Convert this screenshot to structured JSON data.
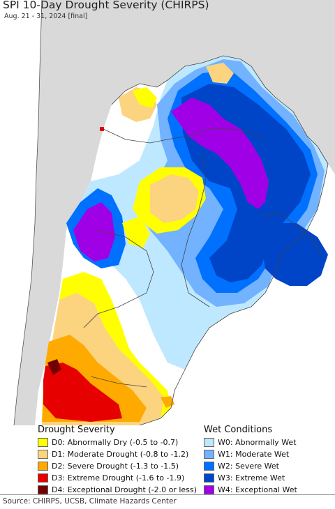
{
  "title": "SPI 10-Day Drought Severity (CHIRPS)",
  "subtitle": "Aug. 21 - 31, 2024 [final]",
  "legend": {
    "drought": {
      "heading": "Drought Severity",
      "items": [
        {
          "label": "D0: Abnormally Dry (-0.5 to -0.7)",
          "color": "#ffff00"
        },
        {
          "label": "D1: Moderate Drought (-0.8 to -1.2)",
          "color": "#fcd37f"
        },
        {
          "label": "D2: Severe Drought (-1.3 to -1.5)",
          "color": "#ffaa00"
        },
        {
          "label": "D3: Extreme Drought (-1.6 to -1.9)",
          "color": "#e60000"
        },
        {
          "label": "D4: Exceptional Drought (-2.0 or less)",
          "color": "#730000"
        }
      ]
    },
    "wet": {
      "heading": "Wet Conditions",
      "items": [
        {
          "label": "W0: Abnormally Wet",
          "color": "#bee8ff"
        },
        {
          "label": "W1: Moderate Wet",
          "color": "#73b2ff"
        },
        {
          "label": "W2: Severe Wet",
          "color": "#0070ff"
        },
        {
          "label": "W3: Extreme Wet",
          "color": "#0044c8"
        },
        {
          "label": "W4: Exceptional Wet",
          "color": "#a000e6"
        }
      ]
    }
  },
  "source": "Source: CHIRPS, UCSB, Climate Hazards Center",
  "map_colors": {
    "outside_region": "#d9d9d9",
    "ocean": "#ffffff",
    "border": "#444444"
  }
}
